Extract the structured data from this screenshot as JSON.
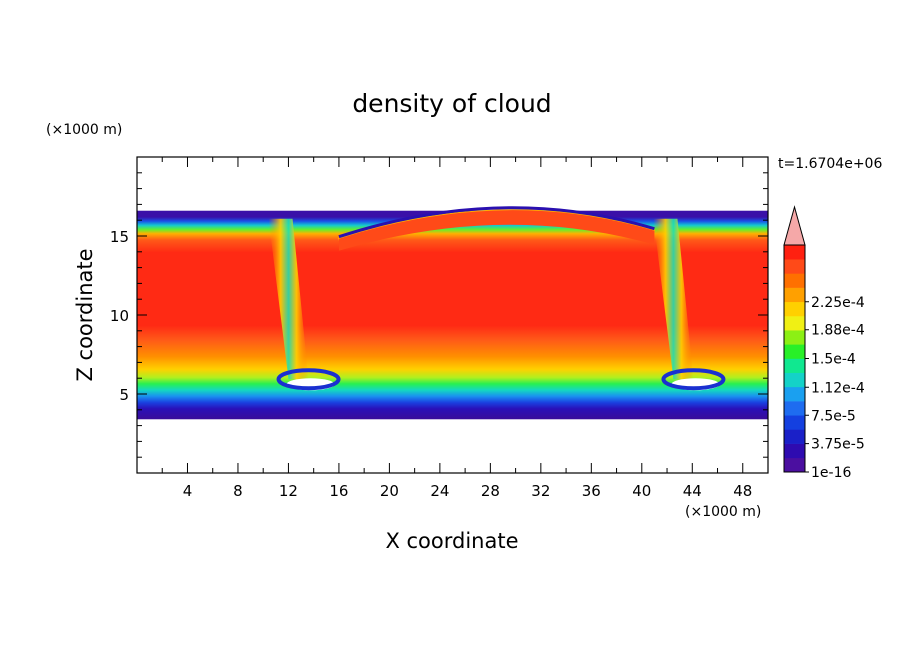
{
  "chart_data": {
    "type": "heatmap",
    "title": "density of cloud",
    "xlabel": "X coordinate",
    "ylabel": "Z coordinate",
    "x_unit": "(×1000 m)",
    "y_unit": "(×1000 m)",
    "time_label": "t=1.6704e+06",
    "xlim": [
      0,
      50
    ],
    "ylim": [
      0,
      20
    ],
    "x_ticks": [
      {
        "value": 4,
        "label": "4"
      },
      {
        "value": 8,
        "label": "8"
      },
      {
        "value": 12,
        "label": "12"
      },
      {
        "value": 16,
        "label": "16"
      },
      {
        "value": 20,
        "label": "20"
      },
      {
        "value": 24,
        "label": "24"
      },
      {
        "value": 28,
        "label": "28"
      },
      {
        "value": 32,
        "label": "32"
      },
      {
        "value": 36,
        "label": "36"
      },
      {
        "value": 40,
        "label": "40"
      },
      {
        "value": 44,
        "label": "44"
      },
      {
        "value": 48,
        "label": "48"
      }
    ],
    "y_ticks": [
      {
        "value": 5,
        "label": "5"
      },
      {
        "value": 10,
        "label": "10"
      },
      {
        "value": 15,
        "label": "15"
      }
    ],
    "colorbar": {
      "labels": [
        {
          "value": 0.000225,
          "label": "2.25e-4"
        },
        {
          "value": 0.000188,
          "label": "1.88e-4"
        },
        {
          "value": 0.00015,
          "label": "1.5e-4"
        },
        {
          "value": 0.000112,
          "label": "1.12e-4"
        },
        {
          "value": 7.5e-05,
          "label": "7.5e-5"
        },
        {
          "value": 3.75e-05,
          "label": "3.75e-5"
        },
        {
          "value": 1e-16,
          "label": "1e-16"
        }
      ],
      "colors": [
        "#4b0fa0",
        "#2e0bb0",
        "#1a20c8",
        "#1440e0",
        "#1e6cf0",
        "#1aa0f0",
        "#14d2c8",
        "#10e890",
        "#28f028",
        "#8cf014",
        "#f0f014",
        "#ffd000",
        "#ffa000",
        "#ff7000",
        "#ff4a18",
        "#ff2010"
      ],
      "extend_color": "#f5a8a8"
    },
    "field": {
      "background": "#ff2a14",
      "cloud_layer_z": [
        3.4,
        16.6
      ],
      "dome_center_x": 29,
      "dome_top_z": 16.9,
      "downdrafts_x": [
        12.8,
        43.3
      ]
    }
  }
}
